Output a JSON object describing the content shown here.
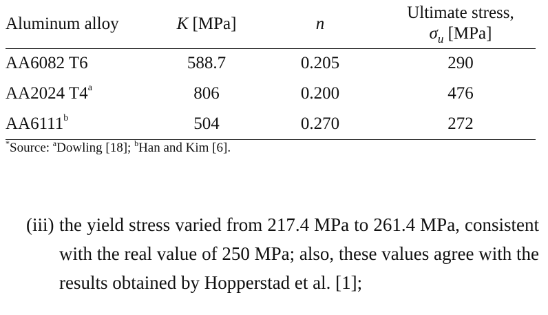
{
  "table": {
    "headers": {
      "alloy": "Aluminum alloy",
      "k_symbol": "K",
      "k_unit": " [MPa]",
      "n_symbol": "n",
      "ult_line1": "Ultimate stress,",
      "ult_sigma": "σ",
      "ult_sub": "u",
      "ult_unit": " [MPa]"
    },
    "rows": [
      {
        "alloy": "AA6082 T6",
        "mark": "",
        "k": "588.7",
        "n": "0.205",
        "ult": "290"
      },
      {
        "alloy": "AA2024 T4",
        "mark": "a",
        "k": "806",
        "n": "0.200",
        "ult": "476"
      },
      {
        "alloy": "AA6111",
        "mark": "b",
        "k": "504",
        "n": "0.270",
        "ult": "272"
      }
    ]
  },
  "footnote": {
    "star": "*",
    "source": "Source: ",
    "mark_a": "a",
    "ref_a": "Dowling [18]; ",
    "mark_b": "b",
    "ref_b": "Han and Kim [6]."
  },
  "paragraph": {
    "label": "(iii)",
    "text": "the yield stress varied from 217.4 MPa to 261.4 MPa, consistent with the real value of 250 MPa; also, these values agree with the results obtained by Hopperstad et al. [1];"
  }
}
